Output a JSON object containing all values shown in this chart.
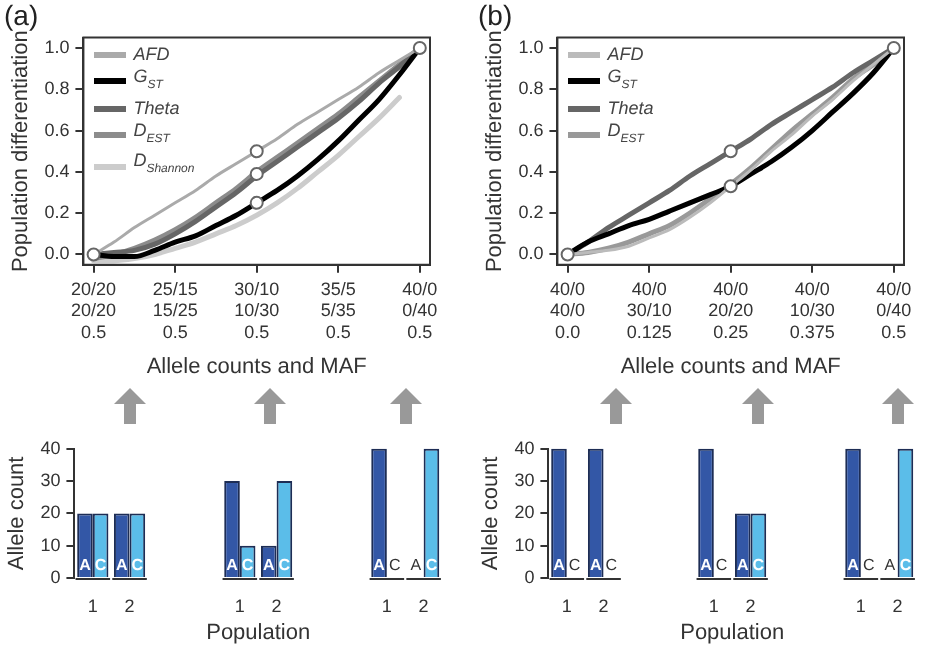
{
  "chart_data": [
    {
      "type": "line",
      "title": "(a)",
      "ylabel": "Population differentiation",
      "xlabel": "Allele counts and MAF",
      "ylim": [
        -0.05,
        1.05
      ],
      "categories": [
        "20/20\n20/20\n0.5",
        null,
        null,
        null,
        "25/15\n15/25\n0.5",
        null,
        null,
        null,
        "30/10\n10/30\n0.5",
        null,
        null,
        null,
        "35/5\n5/35\n0.5",
        null,
        null,
        null,
        "40/0\n0/40\n0.5"
      ],
      "yticks": [
        {
          "value": 0,
          "label": "0.0"
        },
        {
          "value": 0.2,
          "label": "0.2"
        },
        {
          "value": 0.4,
          "label": "0.4"
        },
        {
          "value": 0.6,
          "label": "0.6"
        },
        {
          "value": 0.8,
          "label": "0.8"
        },
        {
          "value": 1,
          "label": "1.0"
        }
      ],
      "legend": "top left",
      "grid": false,
      "series": [
        {
          "name": "AFD",
          "color": "#aaaaaa",
          "values": [
            0,
            0.06,
            0.13,
            0.19,
            0.25,
            0.31,
            0.38,
            0.44,
            0.5,
            0.56,
            0.63,
            0.69,
            0.75,
            0.81,
            0.88,
            0.94,
            1
          ]
        },
        {
          "name": "G$_{ST}$",
          "color": "#000000",
          "values": [
            0,
            -0.01,
            -0.01,
            0.02,
            0.06,
            0.09,
            0.14,
            0.19,
            0.25,
            0.31,
            0.38,
            0.46,
            0.55,
            0.65,
            0.75,
            0.87,
            1
          ]
        },
        {
          "name": "Theta",
          "color": "#666666",
          "values": [
            0,
            0.01,
            0.02,
            0.05,
            0.1,
            0.16,
            0.23,
            0.3,
            0.38,
            0.45,
            0.52,
            0.59,
            0.66,
            0.74,
            0.83,
            0.91,
            1
          ]
        },
        {
          "name": "D$_{EST}$",
          "color": "#8c8c8c",
          "values": [
            -0.02,
            0,
            0.03,
            0.07,
            0.12,
            0.18,
            0.25,
            0.32,
            0.4,
            0.47,
            0.54,
            0.61,
            0.68,
            0.76,
            0.84,
            0.92,
            1
          ]
        },
        {
          "name": "D$_{Shannon}$",
          "color": "#cccccc",
          "values": [
            -0.03,
            -0.03,
            -0.02,
            0,
            0.03,
            0.06,
            0.1,
            0.14,
            0.19,
            0.25,
            0.32,
            0.4,
            0.48,
            0.57,
            0.66,
            0.76,
            null
          ]
        },
        {
          "type": "scatter",
          "marker": "circle",
          "color": "#666666",
          "x": [
            "20/20\n20/20\n0.5",
            "30/10\n10/30\n0.5",
            "30/10\n10/30\n0.5",
            "30/10\n10/30\n0.5",
            "40/0\n0/40\n0.5"
          ],
          "values": [
            0,
            0.5,
            0.39,
            0.25,
            1
          ]
        }
      ]
    },
    {
      "type": "line",
      "title": "(b)",
      "ylabel": "Population differentiation",
      "xlabel": "Allele counts and MAF",
      "ylim": [
        -0.05,
        1.05
      ],
      "categories": [
        "40/0\n40/0\n0.0",
        null,
        null,
        null,
        "40/0\n30/10\n0.125",
        null,
        null,
        null,
        "40/0\n20/20\n0.25",
        null,
        null,
        null,
        "40/0\n10/30\n0.375",
        null,
        null,
        null,
        "40/0\n0/40\n0.5"
      ],
      "yticks": [
        {
          "value": 0,
          "label": "0.0"
        },
        {
          "value": 0.2,
          "label": "0.2"
        },
        {
          "value": 0.4,
          "label": "0.4"
        },
        {
          "value": 0.6,
          "label": "0.6"
        },
        {
          "value": 0.8,
          "label": "0.8"
        },
        {
          "value": 1,
          "label": "1.0"
        }
      ],
      "legend": "top left",
      "grid": false,
      "series": [
        {
          "name": "AFD",
          "color": "#bbbbbb",
          "values": [
            0,
            0.01,
            0.02,
            0.04,
            0.08,
            0.12,
            0.18,
            0.25,
            0.33,
            0.41,
            0.5,
            0.58,
            0.67,
            0.75,
            0.84,
            0.92,
            1
          ]
        },
        {
          "name": "G$_{ST}$",
          "color": "#000000",
          "values": [
            0,
            0.06,
            0.1,
            0.14,
            0.17,
            0.21,
            0.25,
            0.29,
            0.33,
            0.39,
            0.45,
            0.52,
            0.6,
            0.69,
            0.78,
            0.88,
            1
          ]
        },
        {
          "name": "Theta",
          "color": "#666666",
          "values": [
            0,
            0.06,
            0.13,
            0.19,
            0.25,
            0.31,
            0.38,
            0.44,
            0.5,
            0.56,
            0.63,
            0.69,
            0.75,
            0.81,
            0.88,
            0.94,
            1
          ]
        },
        {
          "name": "D$_{EST}$",
          "color": "#999999",
          "values": [
            0,
            0.01,
            0.03,
            0.06,
            0.1,
            0.14,
            0.2,
            0.27,
            0.34,
            0.42,
            0.51,
            0.6,
            0.68,
            0.76,
            0.85,
            0.92,
            1
          ]
        },
        {
          "type": "scatter",
          "marker": "circle",
          "color": "#666666",
          "x": [
            "40/0\n40/0\n0.0",
            "40/0\n20/20\n0.25",
            "40/0\n20/20\n0.25",
            "40/0\n0/40\n0.5"
          ],
          "values": [
            0,
            0.5,
            0.33,
            1
          ]
        }
      ]
    },
    {
      "type": "bar",
      "ylabel": "Allele count",
      "xlabel": "Population",
      "categories": [
        "1",
        "2",
        null,
        null,
        "1",
        "2",
        null,
        null,
        "1",
        "2"
      ],
      "ylim": [
        0,
        40
      ],
      "yticks": [
        0,
        10,
        20,
        30,
        40
      ],
      "grid": false,
      "series": [
        {
          "name": "A",
          "color": "#3357a6",
          "values": [
            20,
            20,
            null,
            null,
            30,
            10,
            null,
            null,
            40,
            0
          ]
        },
        {
          "name": "C",
          "color": "#5bbde9",
          "values": [
            20,
            20,
            null,
            null,
            10,
            30,
            null,
            null,
            0,
            40
          ]
        }
      ]
    },
    {
      "type": "bar",
      "ylabel": "Allele count",
      "xlabel": "Population",
      "categories": [
        "1",
        "2",
        null,
        null,
        "1",
        "2",
        null,
        null,
        "1",
        "2"
      ],
      "ylim": [
        0,
        40
      ],
      "yticks": [
        0,
        10,
        20,
        30,
        40
      ],
      "grid": false,
      "series": [
        {
          "name": "A",
          "color": "#3357a6",
          "values": [
            40,
            40,
            null,
            null,
            40,
            20,
            null,
            null,
            40,
            0
          ]
        },
        {
          "name": "C",
          "color": "#5bbde9",
          "values": [
            0,
            0,
            null,
            null,
            0,
            20,
            null,
            null,
            0,
            40
          ]
        }
      ]
    }
  ]
}
